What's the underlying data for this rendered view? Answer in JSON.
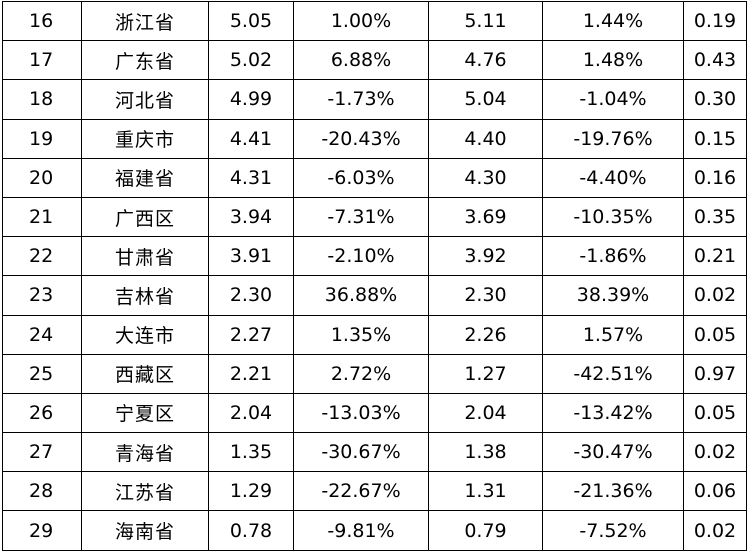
{
  "table": {
    "rows": [
      {
        "rank": "16",
        "region": "浙江省",
        "v1": "5.05",
        "p1": "1.00%",
        "v2": "5.11",
        "p2": "1.44%",
        "last": "0.19"
      },
      {
        "rank": "17",
        "region": "广东省",
        "v1": "5.02",
        "p1": "6.88%",
        "v2": "4.76",
        "p2": "1.48%",
        "last": "0.43"
      },
      {
        "rank": "18",
        "region": "河北省",
        "v1": "4.99",
        "p1": "-1.73%",
        "v2": "5.04",
        "p2": "-1.04%",
        "last": "0.30"
      },
      {
        "rank": "19",
        "region": "重庆市",
        "v1": "4.41",
        "p1": "-20.43%",
        "v2": "4.40",
        "p2": "-19.76%",
        "last": "0.15"
      },
      {
        "rank": "20",
        "region": "福建省",
        "v1": "4.31",
        "p1": "-6.03%",
        "v2": "4.30",
        "p2": "-4.40%",
        "last": "0.16"
      },
      {
        "rank": "21",
        "region": "广西区",
        "v1": "3.94",
        "p1": "-7.31%",
        "v2": "3.69",
        "p2": "-10.35%",
        "last": "0.35"
      },
      {
        "rank": "22",
        "region": "甘肃省",
        "v1": "3.91",
        "p1": "-2.10%",
        "v2": "3.92",
        "p2": "-1.86%",
        "last": "0.21"
      },
      {
        "rank": "23",
        "region": "吉林省",
        "v1": "2.30",
        "p1": "36.88%",
        "v2": "2.30",
        "p2": "38.39%",
        "last": "0.02"
      },
      {
        "rank": "24",
        "region": "大连市",
        "v1": "2.27",
        "p1": "1.35%",
        "v2": "2.26",
        "p2": "1.57%",
        "last": "0.05"
      },
      {
        "rank": "25",
        "region": "西藏区",
        "v1": "2.21",
        "p1": "2.72%",
        "v2": "1.27",
        "p2": "-42.51%",
        "last": "0.97"
      },
      {
        "rank": "26",
        "region": "宁夏区",
        "v1": "2.04",
        "p1": "-13.03%",
        "v2": "2.04",
        "p2": "-13.42%",
        "last": "0.05"
      },
      {
        "rank": "27",
        "region": "青海省",
        "v1": "1.35",
        "p1": "-30.67%",
        "v2": "1.38",
        "p2": "-30.47%",
        "last": "0.02"
      },
      {
        "rank": "28",
        "region": "江苏省",
        "v1": "1.29",
        "p1": "-22.67%",
        "v2": "1.31",
        "p2": "-21.36%",
        "last": "0.06"
      },
      {
        "rank": "29",
        "region": "海南省",
        "v1": "0.78",
        "p1": "-9.81%",
        "v2": "0.79",
        "p2": "-7.52%",
        "last": "0.02"
      }
    ]
  }
}
